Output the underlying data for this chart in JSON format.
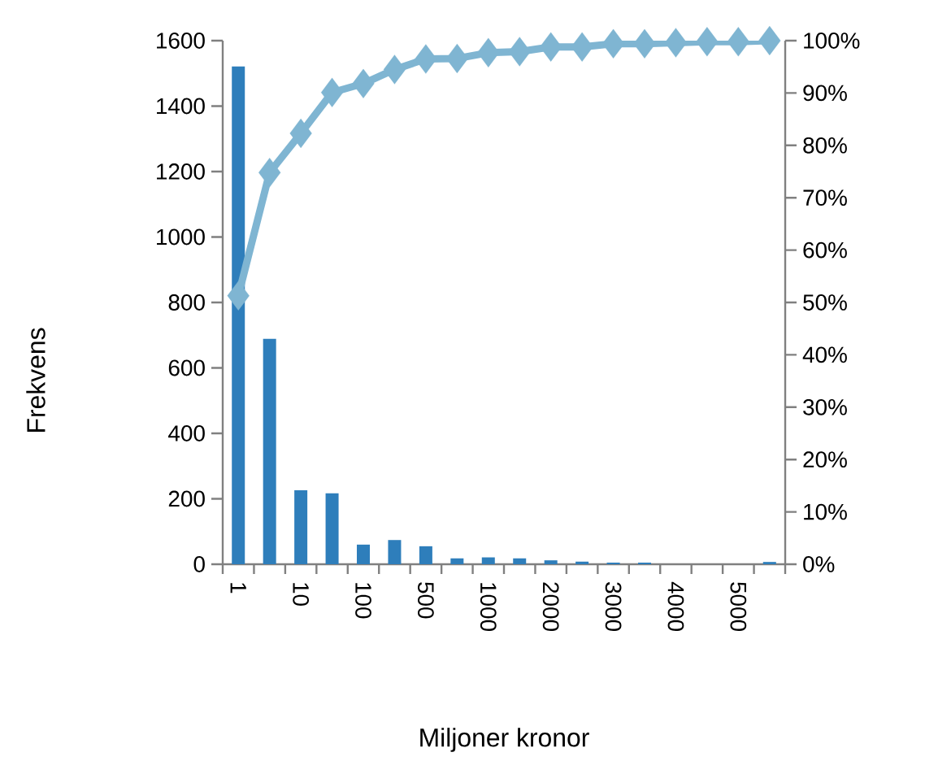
{
  "chart_data": {
    "type": "bar",
    "xlabel": "Miljoner kronor",
    "ylabel": "Frekvens",
    "categories": [
      "1",
      null,
      "10",
      null,
      "100",
      null,
      "500",
      null,
      "1000",
      null,
      "2000",
      null,
      "3000",
      null,
      "4000",
      null,
      "5000",
      null
    ],
    "series": [
      {
        "color": "#2e7ebb",
        "values": [
          1521,
          689,
          226,
          217,
          60,
          74,
          55,
          18,
          21,
          18,
          12,
          8,
          5,
          5,
          0,
          0,
          0,
          7
        ]
      },
      {
        "type": "line",
        "axis": "y2",
        "color": "#7fb5d2",
        "marker": "diamond",
        "values": [
          51.3,
          74.8,
          82.3,
          90.1,
          91.8,
          94.5,
          96.5,
          96.6,
          97.7,
          97.9,
          98.8,
          98.8,
          99.4,
          99.4,
          99.6,
          99.8,
          99.8,
          100
        ]
      }
    ],
    "ylim": [
      0,
      1600
    ],
    "yticks": [
      0,
      200,
      400,
      600,
      800,
      1000,
      1200,
      1400,
      1600
    ],
    "y2lim": [
      0,
      100
    ],
    "y2ticks": [
      {
        "value": 0,
        "label": "0%"
      },
      {
        "value": 10,
        "label": "10%"
      },
      {
        "value": 20,
        "label": "20%"
      },
      {
        "value": 30,
        "label": "30%"
      },
      {
        "value": 40,
        "label": "40%"
      },
      {
        "value": 50,
        "label": "50%"
      },
      {
        "value": 60,
        "label": "60%"
      },
      {
        "value": 70,
        "label": "70%"
      },
      {
        "value": 80,
        "label": "80%"
      },
      {
        "value": 90,
        "label": "90%"
      },
      {
        "value": 100,
        "label": "100%"
      }
    ]
  }
}
